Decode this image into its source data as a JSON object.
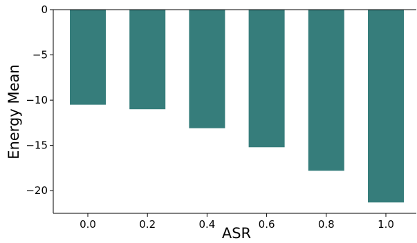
{
  "chart_data": {
    "type": "bar",
    "title": "",
    "xlabel": "ASR",
    "ylabel": "Energy Mean",
    "categories": [
      "0.0",
      "0.2",
      "0.4",
      "0.6",
      "0.8",
      "1.0"
    ],
    "values": [
      -10.5,
      -11.0,
      -13.1,
      -15.2,
      -17.8,
      -21.3
    ],
    "ylim": [
      -22.5,
      0
    ],
    "yticks": [
      0,
      -5,
      -10,
      -15,
      -20
    ],
    "ytick_labels": [
      "0",
      "−5",
      "−10",
      "−15",
      "−20"
    ],
    "bar_color": "#367d7b",
    "grid": false,
    "legend": "none"
  }
}
